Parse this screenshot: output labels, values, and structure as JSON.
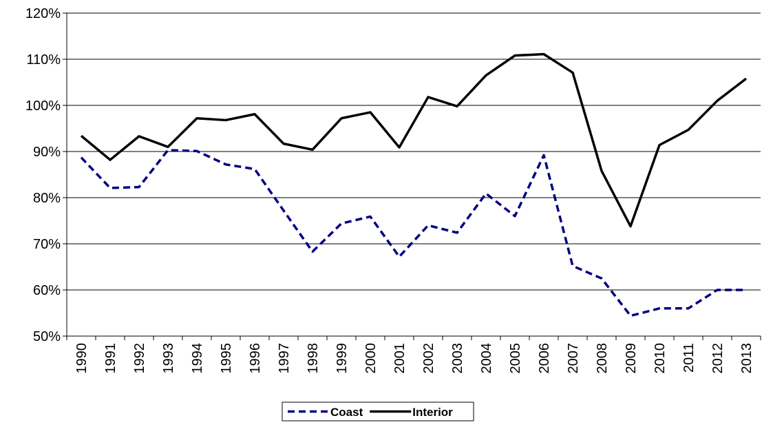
{
  "chart_data": {
    "type": "line",
    "categories": [
      "1990",
      "1991",
      "1992",
      "1993",
      "1994",
      "1995",
      "1996",
      "1997",
      "1998",
      "1999",
      "2000",
      "2001",
      "2002",
      "2003",
      "2004",
      "2005",
      "2006",
      "2007",
      "2008",
      "2009",
      "2010",
      "2011",
      "2012",
      "2013"
    ],
    "series": [
      {
        "name": "Coast",
        "color": "#000080",
        "dashed": true,
        "values": [
          88.7,
          82.1,
          82.3,
          90.3,
          90.1,
          87.2,
          86.2,
          77.2,
          68.3,
          74.4,
          75.9,
          67.2,
          74.0,
          72.4,
          80.9,
          76.0,
          89.2,
          65.2,
          62.5,
          54.4,
          56.0,
          56.0,
          60.0,
          60.0
        ]
      },
      {
        "name": "Interior",
        "color": "#000000",
        "dashed": false,
        "values": [
          93.4,
          88.2,
          93.3,
          91.0,
          97.2,
          96.8,
          98.1,
          91.7,
          90.4,
          97.2,
          98.5,
          90.9,
          101.8,
          99.8,
          106.5,
          110.8,
          111.1,
          107.1,
          85.8,
          73.8,
          91.4,
          94.7,
          101.0,
          105.8
        ]
      }
    ],
    "ylim": [
      50,
      120
    ],
    "yticks": [
      {
        "value": 50,
        "label": "50%"
      },
      {
        "value": 60,
        "label": "60%"
      },
      {
        "value": 70,
        "label": "70%"
      },
      {
        "value": 80,
        "label": "80%"
      },
      {
        "value": 90,
        "label": "90%"
      },
      {
        "value": 100,
        "label": "100%"
      },
      {
        "value": 110,
        "label": "110%"
      },
      {
        "value": 120,
        "label": "120%"
      }
    ],
    "grid": true,
    "legend": "bottom"
  }
}
